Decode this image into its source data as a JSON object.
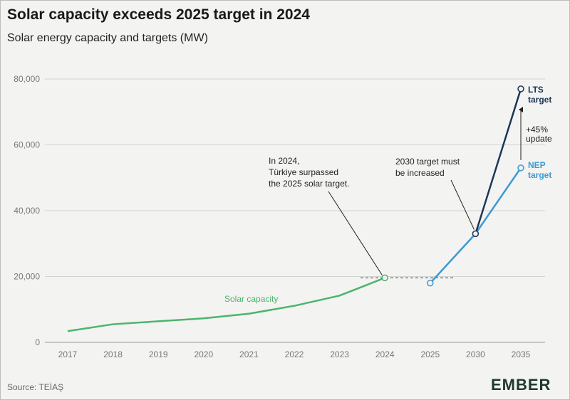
{
  "header": {
    "title": "Solar capacity exceeds 2025 target in 2024",
    "subtitle": "Solar energy capacity and targets (MW)"
  },
  "footer": {
    "source": "Source: TEİAŞ",
    "logo": "EMBER"
  },
  "colors": {
    "solar": "#4bb56c",
    "nep": "#3c9ad2",
    "lts": "#1d3557",
    "grid": "#d3d3d3",
    "axis_text": "#777777"
  },
  "chart_data": {
    "type": "line",
    "categories": [
      "2017",
      "2018",
      "2019",
      "2020",
      "2021",
      "2022",
      "2023",
      "2024",
      "2025",
      "2030",
      "2035"
    ],
    "ylim": [
      0,
      80000
    ],
    "yticks": [
      0,
      20000,
      40000,
      60000,
      80000
    ],
    "ytick_labels": [
      "0",
      "20,000",
      "40,000",
      "60,000",
      "80,000"
    ],
    "series": [
      {
        "name": "Solar capacity",
        "key": "solar",
        "x": [
          "2017",
          "2018",
          "2019",
          "2020",
          "2021",
          "2022",
          "2023",
          "2024"
        ],
        "values": [
          3400,
          5500,
          6400,
          7300,
          8700,
          11100,
          14200,
          19600
        ]
      },
      {
        "name": "NEP target",
        "key": "nep",
        "x": [
          "2025",
          "2030",
          "2035"
        ],
        "values": [
          18000,
          33000,
          53000
        ]
      },
      {
        "name": "LTS target",
        "key": "lts",
        "x": [
          "2030",
          "2035"
        ],
        "values": [
          33000,
          77000
        ]
      }
    ],
    "series_labels": {
      "lts_line1": "LTS",
      "lts_line2": "target",
      "nep_line1": "NEP",
      "nep_line2": "target"
    },
    "annotations": {
      "a2024_line1": "In 2024,",
      "a2024_line2": "Türkiye surpassed",
      "a2024_line3": "the 2025 solar target.",
      "a2030_line1": "2030 target must",
      "a2030_line2": "be increased",
      "update_line1": "+45%",
      "update_line2": "update"
    },
    "grid": true
  }
}
